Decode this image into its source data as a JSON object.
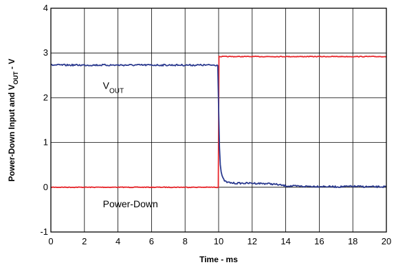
{
  "chart_data": {
    "type": "line",
    "title": "",
    "xlabel": "Time - ms",
    "ylabel": {
      "main": "Power-Down Input and V",
      "sub": "OUT",
      "tail": " - V"
    },
    "xlim": [
      0,
      20
    ],
    "ylim": [
      -1,
      4
    ],
    "xticks": [
      0,
      2,
      4,
      6,
      8,
      10,
      12,
      14,
      16,
      18,
      20
    ],
    "yticks": [
      -1,
      0,
      1,
      2,
      3,
      4
    ],
    "grid": true,
    "legend": "none",
    "series": [
      {
        "name": "Power-Down",
        "color": "#e8262b",
        "x": [
          0,
          9.98,
          9.98,
          10.02,
          10.02,
          20
        ],
        "y": [
          0.0,
          0.0,
          0.0,
          2.92,
          2.92,
          2.92
        ]
      },
      {
        "name": "VOUT",
        "color": "#2b3a8f",
        "x": [
          0,
          2,
          4,
          6,
          8,
          9.95,
          10.0,
          10.05,
          10.1,
          10.15,
          10.2,
          10.3,
          10.4,
          10.5,
          10.7,
          11,
          12,
          13,
          13.5,
          14,
          15,
          16,
          17,
          18,
          19,
          20
        ],
        "y": [
          2.73,
          2.73,
          2.73,
          2.73,
          2.73,
          2.73,
          1.8,
          0.9,
          0.5,
          0.35,
          0.25,
          0.17,
          0.13,
          0.11,
          0.1,
          0.09,
          0.09,
          0.08,
          0.06,
          0.03,
          0.02,
          0.02,
          0.01,
          0.02,
          0.01,
          0.01
        ]
      }
    ],
    "annotations": [
      {
        "text": "V",
        "sub": "OUT",
        "x": 3.1,
        "y": 2.2
      },
      {
        "text": "Power-Down",
        "x": 3.1,
        "y": -0.45
      }
    ]
  }
}
